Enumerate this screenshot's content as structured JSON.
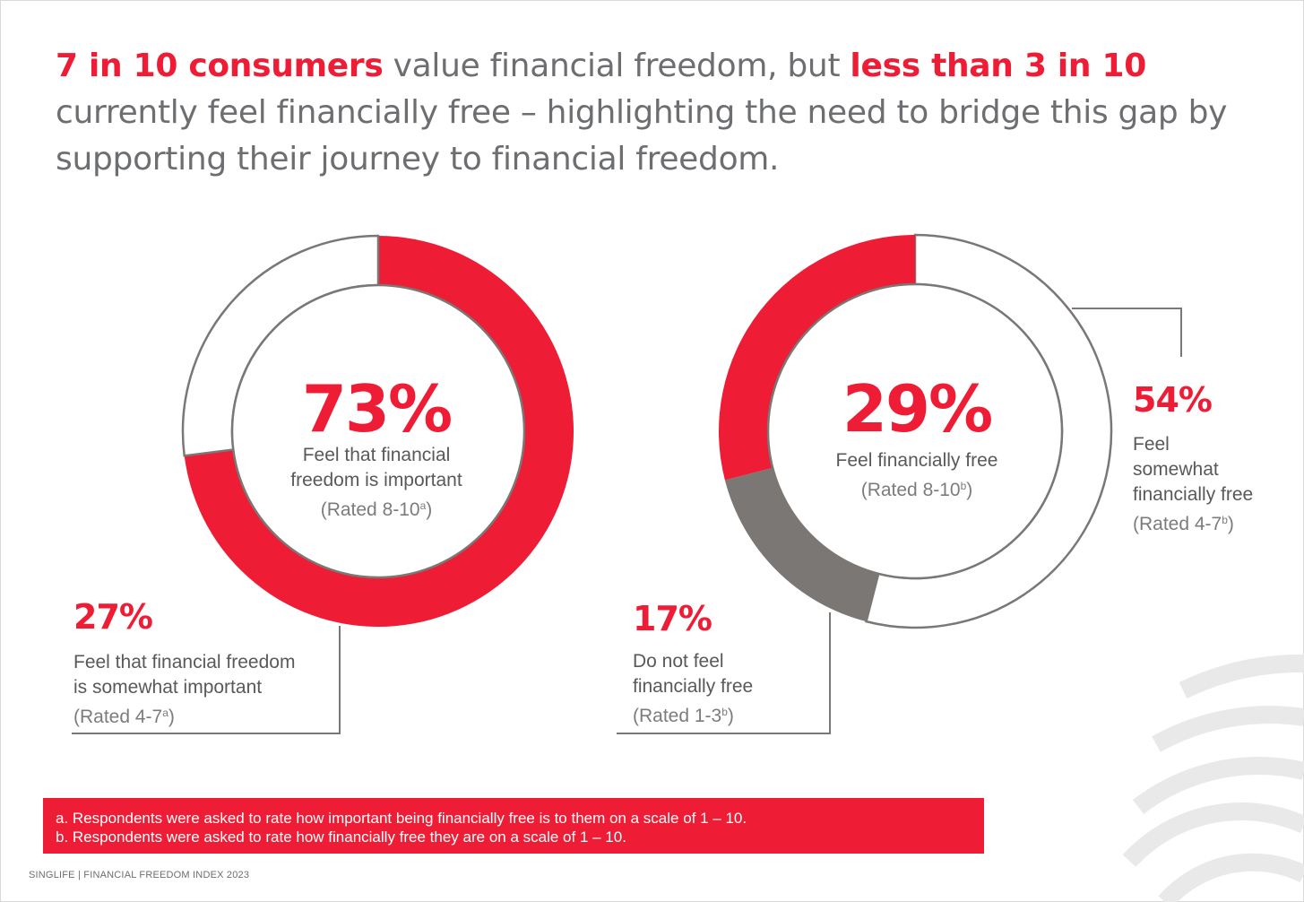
{
  "headline": {
    "part1": "7 in 10 consumers",
    "part2": " value financial freedom, but ",
    "part3": "less than 3 in 10",
    "part4": " currently feel financially free – highlighting the need to bridge this gap by supporting their journey to financial freedom."
  },
  "colors": {
    "accent": "#ee1c34",
    "grey": "#7a7775",
    "text": "#6d6e71"
  },
  "chart_data": [
    {
      "type": "pie",
      "title": "",
      "slices": [
        {
          "label": "Feel that financial freedom is important",
          "rated": "(Rated 8-10",
          "footnote": "a",
          "value": 73,
          "display": "73%",
          "color": "#ee1c34"
        },
        {
          "label": "Feel that financial freedom is somewhat important",
          "rated": "(Rated 4-7",
          "footnote": "a",
          "value": 27,
          "display": "27%",
          "color": "#ffffff"
        }
      ]
    },
    {
      "type": "pie",
      "title": "",
      "slices": [
        {
          "label": "Feel somewhat financially free",
          "rated": "(Rated 4-7",
          "footnote": "b",
          "value": 54,
          "display": "54%",
          "color": "#ffffff"
        },
        {
          "label": "Do not feel financially free",
          "rated": "(Rated 1-3",
          "footnote": "b",
          "value": 17,
          "display": "17%",
          "color": "#7a7775"
        },
        {
          "label": "Feel financially free",
          "rated": "(Rated 8-10",
          "footnote": "b",
          "value": 29,
          "display": "29%",
          "color": "#ee1c34"
        }
      ]
    }
  ],
  "center_labels": {
    "c1_line1": "Feel that financial",
    "c1_line2": "freedom is important",
    "c2_line1": "Feel financially free"
  },
  "side_labels": {
    "l27_line1": "Feel that financial freedom",
    "l27_line2": "is somewhat important",
    "l17_line1": "Do not feel",
    "l17_line2": "financially free",
    "l54_line1": "Feel",
    "l54_line2": "somewhat",
    "l54_line3": "financially free"
  },
  "footnotes": {
    "a": "a. Respondents were asked to rate how important being financially free is to them on a scale of  1 – 10.",
    "b": "b. Respondents were asked to rate how financially free they are on a scale of  1 – 10."
  },
  "footer": "SINGLIFE | FINANCIAL FREEDOM INDEX 2023"
}
